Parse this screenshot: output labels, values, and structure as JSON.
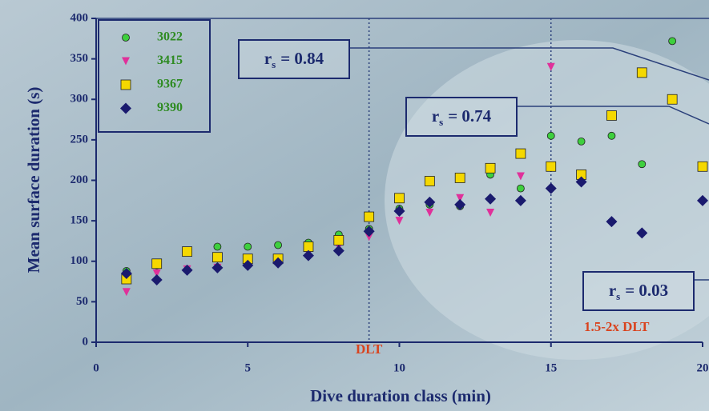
{
  "chart_data": {
    "type": "scatter",
    "xlabel": "Dive duration class (min)",
    "ylabel": "Mean surface duration (s)",
    "xlim": [
      0,
      20
    ],
    "xticks": [
      0,
      5,
      10,
      15,
      20
    ],
    "ylim": [
      0,
      400
    ],
    "yticks": [
      0,
      50,
      100,
      150,
      200,
      250,
      300,
      350,
      400
    ],
    "series": [
      {
        "name": "3022",
        "color": "#3ecf3e",
        "marker": "circle",
        "x": [
          1,
          2,
          4,
          5,
          6,
          7,
          8,
          9,
          10,
          11,
          12,
          13,
          14,
          15,
          16,
          17,
          18,
          19
        ],
        "values": [
          88,
          95,
          118,
          118,
          120,
          123,
          133,
          140,
          165,
          170,
          168,
          207,
          190,
          255,
          248,
          255,
          220,
          372
        ]
      },
      {
        "name": "3415",
        "color": "#e0309a",
        "marker": "triangle",
        "x": [
          1,
          2,
          3,
          4,
          5,
          6,
          7,
          8,
          9,
          10,
          11,
          12,
          13,
          14,
          15,
          16
        ],
        "values": [
          62,
          85,
          90,
          92,
          98,
          100,
          110,
          118,
          130,
          150,
          160,
          178,
          160,
          205,
          340,
          200
        ]
      },
      {
        "name": "9367",
        "color": "#f5d800",
        "marker": "square",
        "x": [
          1,
          2,
          3,
          4,
          5,
          6,
          7,
          8,
          9,
          10,
          11,
          12,
          13,
          14,
          15,
          16,
          17,
          18,
          19,
          20
        ],
        "values": [
          78,
          97,
          112,
          105,
          103,
          103,
          118,
          126,
          155,
          178,
          199,
          203,
          215,
          233,
          217,
          207,
          280,
          333,
          300,
          217
        ]
      },
      {
        "name": "9390",
        "color": "#1a1a6e",
        "marker": "diamond",
        "x": [
          1,
          2,
          3,
          4,
          5,
          6,
          7,
          8,
          9,
          10,
          11,
          12,
          13,
          14,
          15,
          16,
          17,
          18,
          20
        ],
        "values": [
          85,
          77,
          89,
          92,
          95,
          98,
          107,
          113,
          137,
          162,
          173,
          170,
          177,
          175,
          190,
          198,
          149,
          135,
          175
        ]
      }
    ],
    "reference_lines": [
      {
        "x": 9,
        "label": "DLT"
      },
      {
        "x": 15,
        "label": "1.5-2x DLT"
      }
    ],
    "annotations": [
      {
        "symbol": "r",
        "subscript": "s",
        "text": "= 0.84"
      },
      {
        "symbol": "r",
        "subscript": "s",
        "text": "= 0.74"
      },
      {
        "symbol": "r",
        "subscript": "s",
        "text": "= 0.03"
      }
    ]
  }
}
